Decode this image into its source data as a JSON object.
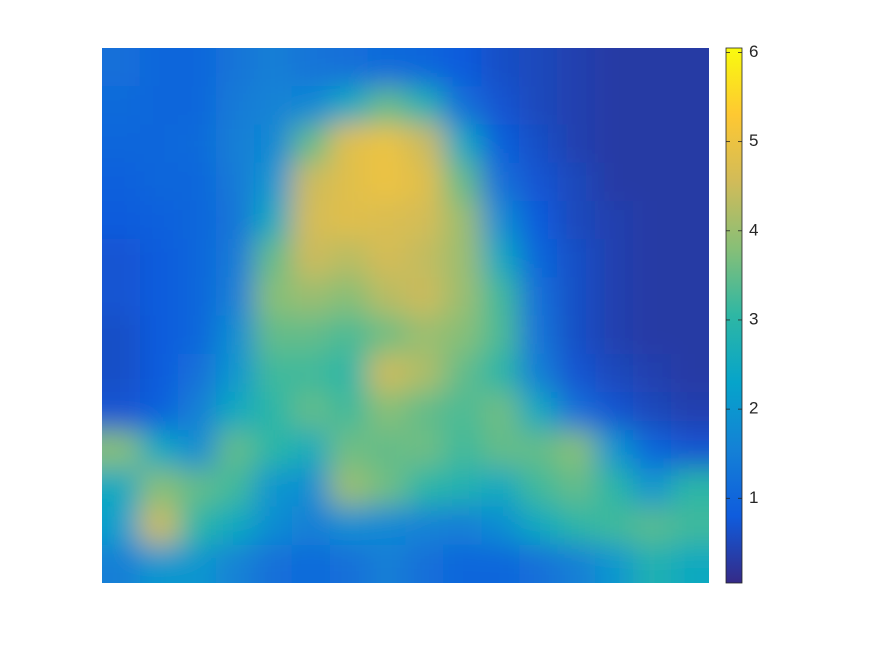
{
  "chart_data": {
    "type": "heatmap",
    "colormap": [
      "#352a87",
      "#0f5cdd",
      "#1481d6",
      "#06a4ca",
      "#2eb7a4",
      "#87bf77",
      "#d1bb59",
      "#fec832",
      "#f9fb0e"
    ],
    "clim": [
      0.05,
      6.05
    ],
    "colorbar_ticks": [
      1,
      2,
      3,
      4,
      5,
      6
    ],
    "z": [
      [
        1.2,
        1.0,
        1.0,
        1.3,
        1.5,
        1.3,
        1.2,
        1.1,
        1.0,
        0.8,
        0.6,
        0.5,
        0.4,
        0.3,
        0.3,
        0.3
      ],
      [
        1.1,
        1.0,
        1.0,
        1.4,
        1.6,
        1.7,
        2.5,
        3.5,
        2.8,
        1.2,
        0.7,
        0.5,
        0.4,
        0.3,
        0.3,
        0.3
      ],
      [
        1.0,
        1.0,
        1.1,
        1.5,
        1.7,
        3.5,
        4.8,
        5.0,
        4.5,
        2.5,
        0.9,
        0.6,
        0.4,
        0.3,
        0.3,
        0.3
      ],
      [
        0.9,
        1.0,
        1.0,
        1.4,
        2.0,
        4.5,
        4.8,
        5.0,
        4.8,
        3.5,
        1.2,
        0.7,
        0.5,
        0.3,
        0.3,
        0.3
      ],
      [
        0.8,
        0.9,
        1.0,
        1.3,
        2.5,
        4.6,
        4.8,
        4.7,
        4.6,
        4.0,
        1.8,
        0.8,
        0.5,
        0.4,
        0.3,
        0.3
      ],
      [
        0.7,
        0.8,
        1.0,
        1.4,
        3.5,
        4.5,
        4.3,
        4.6,
        4.4,
        4.0,
        2.5,
        1.0,
        0.6,
        0.4,
        0.3,
        0.3
      ],
      [
        0.7,
        0.8,
        1.0,
        1.5,
        3.8,
        4.0,
        3.8,
        4.3,
        4.5,
        4.0,
        3.2,
        1.2,
        0.6,
        0.4,
        0.3,
        0.3
      ],
      [
        0.6,
        0.8,
        1.0,
        1.8,
        3.5,
        3.5,
        3.3,
        3.6,
        4.0,
        3.8,
        3.3,
        1.3,
        0.6,
        0.4,
        0.3,
        0.3
      ],
      [
        0.6,
        0.8,
        1.2,
        2.0,
        3.2,
        3.2,
        3.0,
        4.5,
        4.2,
        3.5,
        3.0,
        1.5,
        0.7,
        0.5,
        0.4,
        0.3
      ],
      [
        0.7,
        0.9,
        1.5,
        2.5,
        3.0,
        3.5,
        3.2,
        3.8,
        3.5,
        3.3,
        3.6,
        2.5,
        1.2,
        0.7,
        0.5,
        0.4
      ],
      [
        3.8,
        2.5,
        1.8,
        3.5,
        3.0,
        2.6,
        3.6,
        3.5,
        3.6,
        3.2,
        3.5,
        3.5,
        3.8,
        2.0,
        1.0,
        0.7
      ],
      [
        2.5,
        3.8,
        3.5,
        3.2,
        2.0,
        1.8,
        4.0,
        3.6,
        3.0,
        2.8,
        2.5,
        3.2,
        3.5,
        3.0,
        2.0,
        3.0
      ],
      [
        2.2,
        4.5,
        3.0,
        2.5,
        1.8,
        1.5,
        1.8,
        1.7,
        1.6,
        1.5,
        1.8,
        2.5,
        3.0,
        3.2,
        3.4,
        3.2
      ],
      [
        1.5,
        2.0,
        2.0,
        1.6,
        1.2,
        1.1,
        1.2,
        1.5,
        1.2,
        1.0,
        1.0,
        1.2,
        1.5,
        2.0,
        2.8,
        2.5
      ]
    ]
  }
}
